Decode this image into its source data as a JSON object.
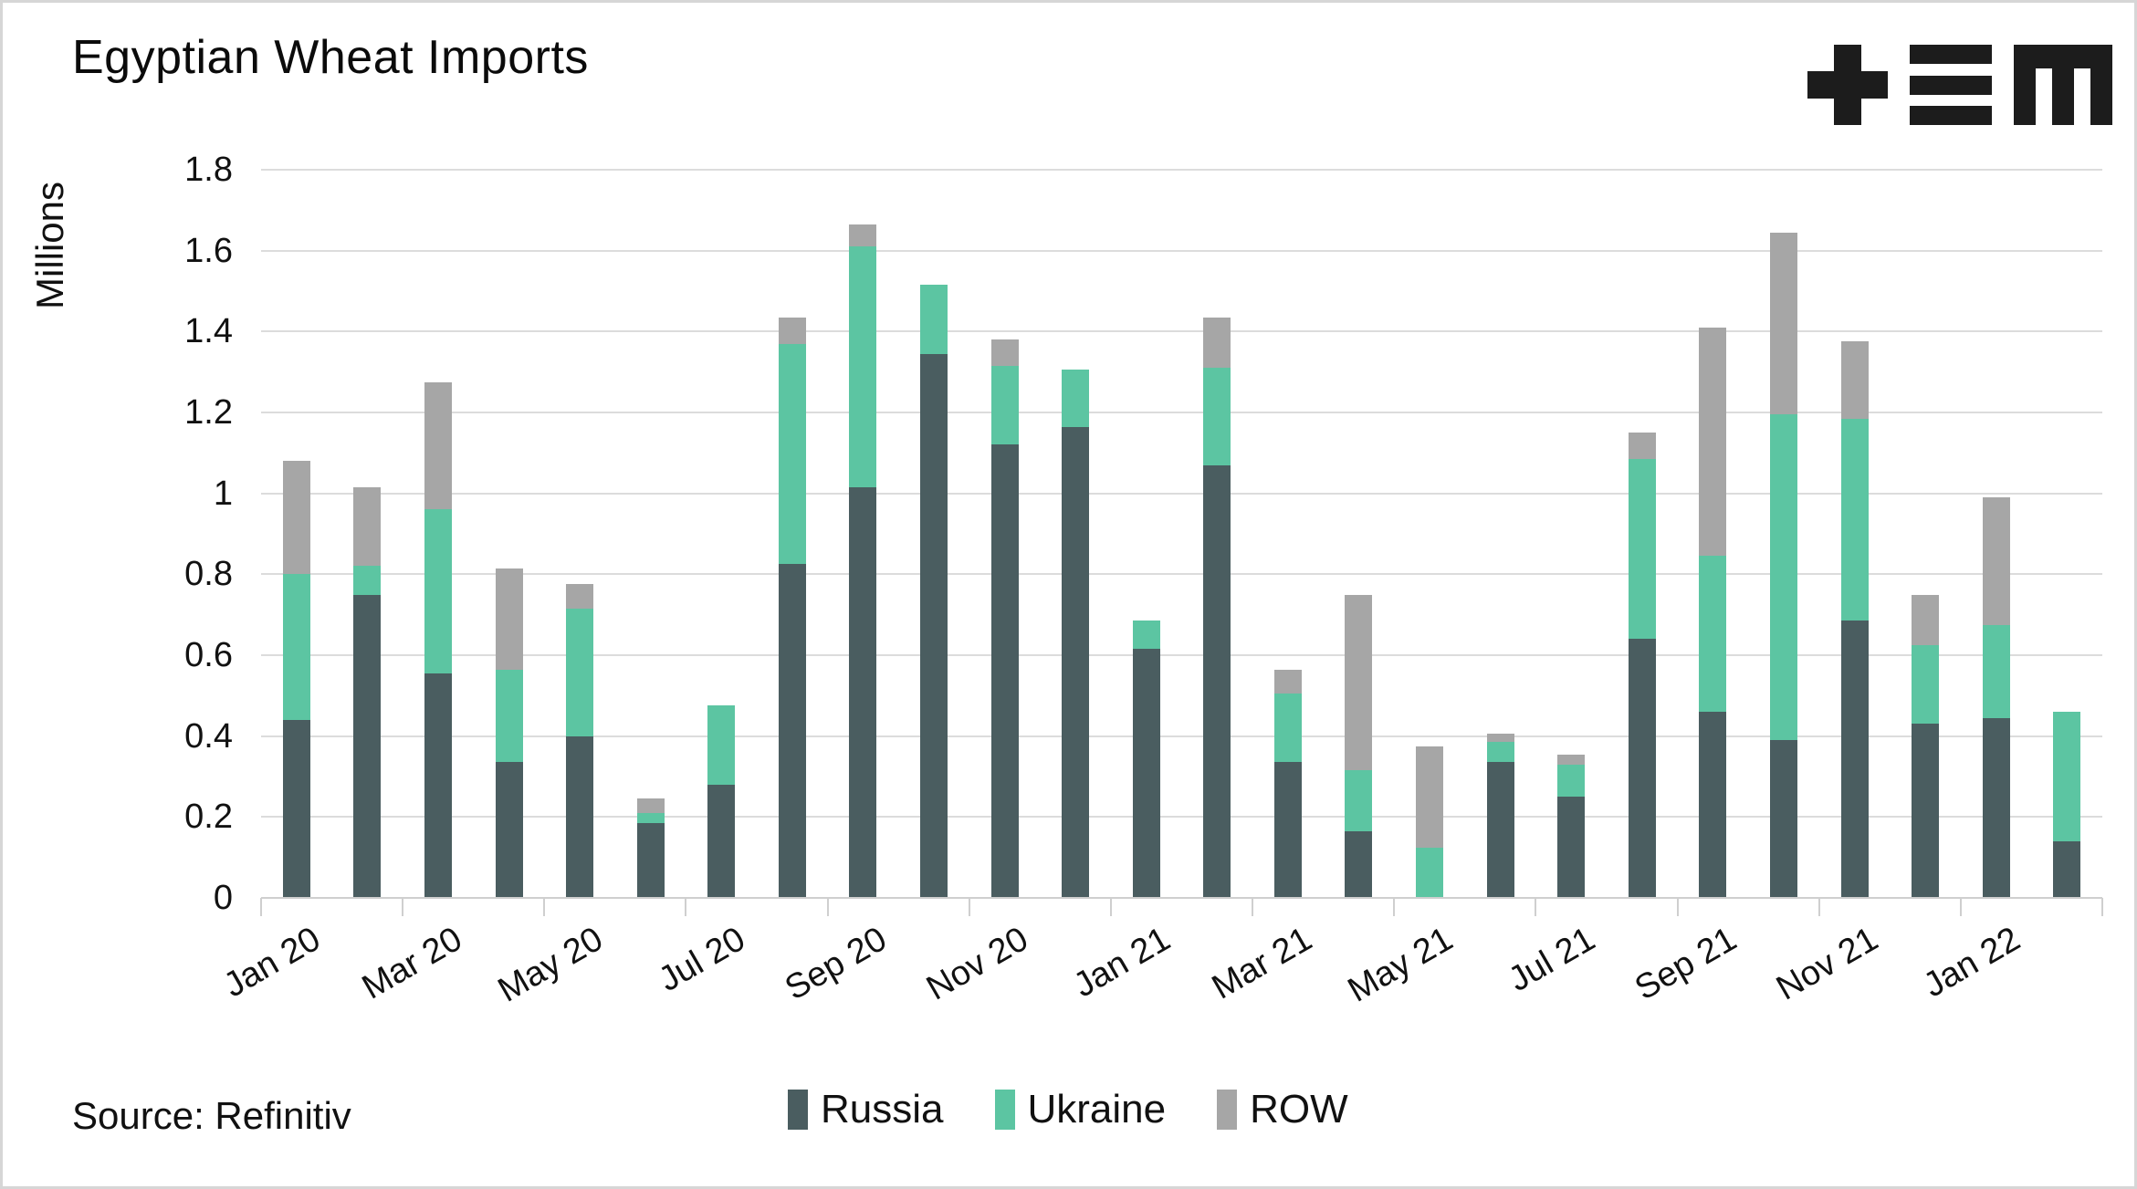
{
  "title": "Egyptian Wheat Imports",
  "source_note": "Source: Refinitiv",
  "logo": {
    "glyphs": [
      "plus",
      "triple-bar",
      "m"
    ],
    "color": "#1c1c1c"
  },
  "y_axis": {
    "label": "Millions",
    "ticks": [
      "1.8",
      "1.6",
      "1.4",
      "1.2",
      "1",
      "0.8",
      "0.6",
      "0.4",
      "0.2",
      "0"
    ]
  },
  "legend": {
    "items": [
      "Russia",
      "Ukraine",
      "ROW"
    ]
  },
  "chart_data": {
    "type": "bar",
    "stacked": true,
    "title": "Egyptian Wheat Imports",
    "xlabel": "",
    "ylabel": "Millions",
    "ylim": [
      0,
      1.8
    ],
    "grid": true,
    "legend_position": "bottom",
    "categories": [
      "Jan 20",
      "Feb 20",
      "Mar 20",
      "Apr 20",
      "May 20",
      "Jun 20",
      "Jul 20",
      "Aug 20",
      "Sep 20",
      "Oct 20",
      "Nov 20",
      "Dec 20",
      "Jan 21",
      "Feb 21",
      "Mar 21",
      "Apr 21",
      "May 21",
      "Jun 21",
      "Jul 21",
      "Aug 21",
      "Sep 21",
      "Oct 21",
      "Nov 21",
      "Dec 21",
      "Jan 22",
      "Feb 22"
    ],
    "x_tick_labels": [
      "Jan 20",
      "Mar 20",
      "May 20",
      "Jul 20",
      "Sep 20",
      "Nov 20",
      "Jan 21",
      "Mar 21",
      "May 21",
      "Jul 21",
      "Sep 21",
      "Nov 21",
      "Jan 22"
    ],
    "series": [
      {
        "name": "Russia",
        "color": "#4a5d60",
        "values": [
          0.44,
          0.75,
          0.555,
          0.335,
          0.4,
          0.185,
          0.28,
          0.825,
          1.015,
          1.345,
          1.12,
          1.165,
          0.615,
          1.07,
          0.335,
          0.165,
          0.0,
          0.335,
          0.25,
          0.64,
          0.46,
          0.39,
          0.685,
          0.43,
          0.445,
          0.14
        ]
      },
      {
        "name": "Ukraine",
        "color": "#5cc5a2",
        "values": [
          0.36,
          0.07,
          0.405,
          0.23,
          0.315,
          0.025,
          0.195,
          0.545,
          0.595,
          0.17,
          0.195,
          0.14,
          0.07,
          0.24,
          0.17,
          0.15,
          0.125,
          0.05,
          0.08,
          0.445,
          0.385,
          0.805,
          0.5,
          0.195,
          0.23,
          0.32
        ]
      },
      {
        "name": "ROW",
        "color": "#a6a6a6",
        "values": [
          0.28,
          0.195,
          0.315,
          0.25,
          0.06,
          0.035,
          0.0,
          0.065,
          0.055,
          0.0,
          0.065,
          0.0,
          0.0,
          0.125,
          0.06,
          0.435,
          0.25,
          0.02,
          0.025,
          0.065,
          0.565,
          0.45,
          0.19,
          0.125,
          0.315,
          0.0
        ]
      }
    ]
  }
}
